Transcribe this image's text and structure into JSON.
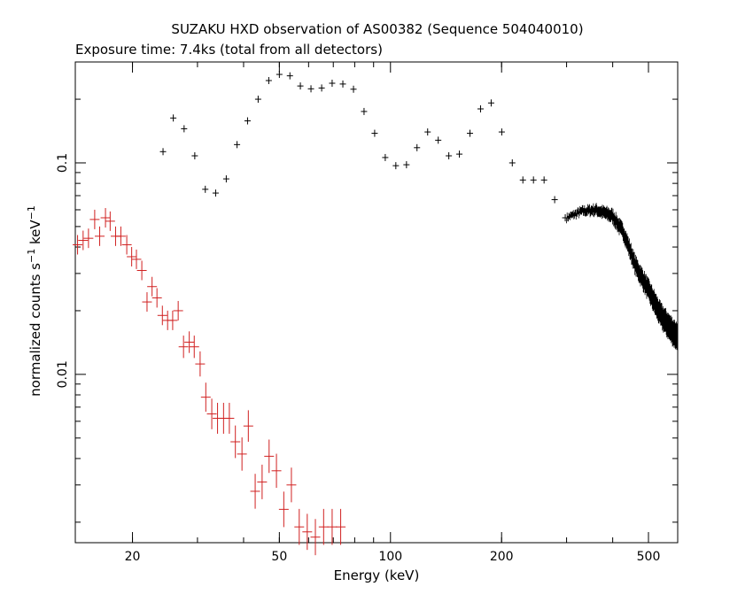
{
  "chart_data": {
    "type": "scatter",
    "title": "SUZAKU HXD observation of AS00382 (Sequence 504040010)",
    "subtitle": "Exposure time: 7.4ks (total from all detectors)",
    "xlabel": "Energy (keV)",
    "ylabel": "normalized counts s",
    "ylabel_sup1": "−1",
    "ylabel_mid": " keV",
    "ylabel_sup2": "−1",
    "xscale": "log",
    "yscale": "log",
    "xlim": [
      14,
      600
    ],
    "ylim": [
      0.0016,
      0.3
    ],
    "x_ticks": [
      {
        "value": 20,
        "label": "20"
      },
      {
        "value": 50,
        "label": "50"
      },
      {
        "value": 100,
        "label": "100"
      },
      {
        "value": 200,
        "label": "200"
      },
      {
        "value": 500,
        "label": "500"
      }
    ],
    "y_ticks": [
      {
        "value": 0.1,
        "label": "0.1"
      },
      {
        "value": 0.01,
        "label": "0.01"
      }
    ],
    "grid": false,
    "legend": "none",
    "series": [
      {
        "color": "#000000",
        "points": [
          [
            24.2,
            0.113
          ],
          [
            25.8,
            0.163
          ],
          [
            27.6,
            0.145
          ],
          [
            29.5,
            0.108
          ],
          [
            31.5,
            0.075
          ],
          [
            33.6,
            0.072
          ],
          [
            35.9,
            0.084
          ],
          [
            38.4,
            0.122
          ],
          [
            41.0,
            0.158
          ],
          [
            43.8,
            0.2
          ],
          [
            46.8,
            0.245
          ],
          [
            50.0,
            0.262
          ],
          [
            53.4,
            0.258
          ],
          [
            57.0,
            0.231
          ],
          [
            60.9,
            0.224
          ],
          [
            65.1,
            0.226
          ],
          [
            69.5,
            0.238
          ],
          [
            74.3,
            0.236
          ],
          [
            79.4,
            0.223
          ],
          [
            84.8,
            0.175
          ],
          [
            90.6,
            0.138
          ],
          [
            96.8,
            0.106
          ],
          [
            103.4,
            0.097
          ],
          [
            110.5,
            0.098
          ],
          [
            118.0,
            0.118
          ],
          [
            126.1,
            0.14
          ],
          [
            134.7,
            0.128
          ],
          [
            143.9,
            0.108
          ],
          [
            153.7,
            0.11
          ],
          [
            164.2,
            0.138
          ],
          [
            175.4,
            0.18
          ],
          [
            187.4,
            0.192
          ],
          [
            200.2,
            0.14
          ],
          [
            213.8,
            0.1
          ],
          [
            228.4,
            0.083
          ],
          [
            244.0,
            0.083
          ],
          [
            260.7,
            0.083
          ],
          [
            278.5,
            0.067
          ],
          [
            297.5,
            0.055
          ]
        ]
      },
      {
        "color": "#d02020",
        "points": [
          [
            14.2,
            0.041
          ],
          [
            14.7,
            0.043
          ],
          [
            15.2,
            0.044
          ],
          [
            15.8,
            0.054
          ],
          [
            16.3,
            0.045
          ],
          [
            16.9,
            0.055
          ],
          [
            17.4,
            0.053
          ],
          [
            18.0,
            0.045
          ],
          [
            18.6,
            0.045
          ],
          [
            19.3,
            0.041
          ],
          [
            19.9,
            0.036
          ],
          [
            20.5,
            0.035
          ],
          [
            21.2,
            0.031
          ],
          [
            21.9,
            0.022
          ],
          [
            22.6,
            0.026
          ],
          [
            23.3,
            0.023
          ],
          [
            24.1,
            0.019
          ],
          [
            24.9,
            0.018
          ],
          [
            25.7,
            0.018
          ],
          [
            26.6,
            0.02
          ],
          [
            27.5,
            0.0135
          ],
          [
            28.5,
            0.0142
          ],
          [
            29.4,
            0.0135
          ],
          [
            30.5,
            0.0112
          ],
          [
            31.6,
            0.0078
          ],
          [
            32.8,
            0.0065
          ],
          [
            34.0,
            0.0062
          ],
          [
            35.3,
            0.0062
          ],
          [
            36.6,
            0.0062
          ],
          [
            38.0,
            0.0048
          ],
          [
            39.6,
            0.0042
          ],
          [
            41.2,
            0.0057
          ],
          [
            43.0,
            0.0028
          ],
          [
            44.9,
            0.0031
          ],
          [
            46.9,
            0.0041
          ],
          [
            49.1,
            0.0035
          ],
          [
            51.4,
            0.0023
          ],
          [
            53.9,
            0.003
          ],
          [
            56.6,
            0.0019
          ],
          [
            59.5,
            0.0018
          ],
          [
            62.6,
            0.0017
          ],
          [
            65.9,
            0.0019
          ],
          [
            69.5,
            0.0019
          ],
          [
            73.3,
            0.0019
          ]
        ]
      }
    ]
  }
}
